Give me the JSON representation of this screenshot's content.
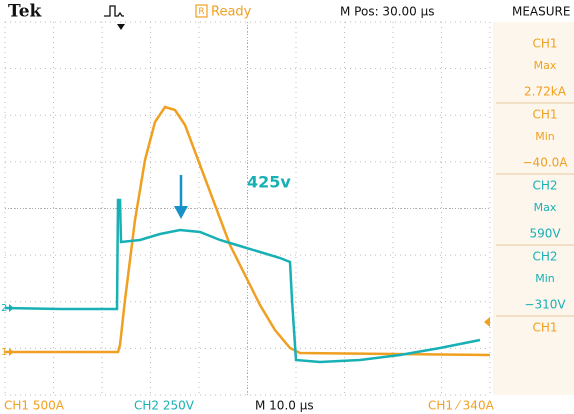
{
  "header": {
    "brand": "Tek",
    "status": "Ready",
    "status_icon": "R",
    "position": "M Pos: 30.00 µs",
    "panel_title": "MEASURE"
  },
  "measurements": [
    {
      "channel": "CH1",
      "type": "Max",
      "value": "2.72kA"
    },
    {
      "channel": "CH1",
      "type": "Min",
      "value": "−40.0A"
    },
    {
      "channel": "CH2",
      "type": "Max",
      "value": "590V"
    },
    {
      "channel": "CH2",
      "type": "Min",
      "value": "−310V"
    },
    {
      "channel": "CH1"
    }
  ],
  "annotation": "425v",
  "markers": {
    "ch2": "2",
    "ch1": "1"
  },
  "footer": {
    "ch1_scale": "CH1  500A",
    "ch2_scale": "CH2  250V",
    "timebase": "M 10.0 µs",
    "trigger": "CH1 ⁄ 340A"
  }
}
